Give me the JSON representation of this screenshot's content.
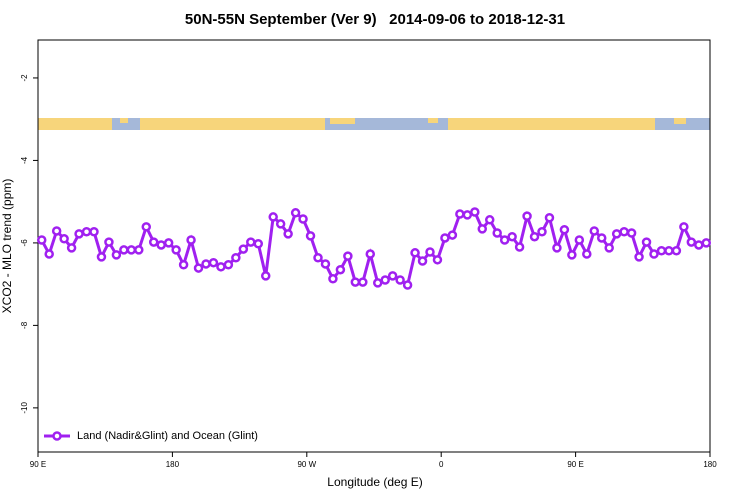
{
  "chart_data": {
    "type": "line",
    "title": "50N-55N September (Ver 9)   2014-09-06 to 2018-12-31",
    "x_label": "Longitude (deg E)",
    "y_label": "XCO2 - MLO trend (ppm)",
    "xlim": [
      90,
      540
    ],
    "xticks": [
      {
        "value": 90,
        "label": "90 E"
      },
      {
        "value": 180,
        "label": "180"
      },
      {
        "value": 270,
        "label": "90 W"
      },
      {
        "value": 360,
        "label": "0"
      },
      {
        "value": 450,
        "label": "90 E"
      },
      {
        "value": 540,
        "label": "180"
      }
    ],
    "ylim": [
      -11.07,
      -1.08
    ],
    "yticks": [
      -2,
      -4,
      -6,
      -8,
      -10
    ],
    "legend": "bottom-left",
    "series": [
      {
        "name": "Land (Nadir&Glint) and Ocean (Glint)",
        "color": "#a020f0",
        "x": [
          92.5,
          97.5,
          102.5,
          107.5,
          112.5,
          117.5,
          122.5,
          127.5,
          132.5,
          137.5,
          142.5,
          147.5,
          152.5,
          157.5,
          162.5,
          167.5,
          172.5,
          177.5,
          182.5,
          187.5,
          192.5,
          197.5,
          202.5,
          207.5,
          212.5,
          217.5,
          222.5,
          227.5,
          232.5,
          237.5,
          242.5,
          247.5,
          252.5,
          257.5,
          262.5,
          267.5,
          272.5,
          277.5,
          282.5,
          287.5,
          292.5,
          297.5,
          302.5,
          307.5,
          312.5,
          317.5,
          322.5,
          327.5,
          332.5,
          337.5,
          342.5,
          347.5,
          352.5,
          357.5,
          362.5,
          367.5,
          372.5,
          377.5,
          382.5,
          387.5,
          392.5,
          397.5,
          402.5,
          407.5,
          412.5,
          417.5,
          422.5,
          427.5,
          432.5,
          437.5,
          442.5,
          447.5,
          452.5,
          457.5,
          462.5,
          467.5,
          472.5,
          477.5,
          482.5,
          487.5,
          492.5,
          497.5,
          502.5,
          507.5,
          512.5,
          517.5,
          522.5,
          527.5,
          532.5,
          537.5
        ],
        "values": [
          -5.93,
          -6.27,
          -5.71,
          -5.9,
          -6.12,
          -5.78,
          -5.73,
          -5.73,
          -6.34,
          -5.98,
          -6.29,
          -6.17,
          -6.17,
          -6.17,
          -5.61,
          -5.98,
          -6.05,
          -6.0,
          -6.17,
          -6.53,
          -5.93,
          -6.61,
          -6.51,
          -6.48,
          -6.58,
          -6.53,
          -6.36,
          -6.15,
          -5.98,
          -6.02,
          -6.8,
          -5.37,
          -5.54,
          -5.78,
          -5.27,
          -5.42,
          -5.83,
          -6.36,
          -6.51,
          -6.87,
          -6.65,
          -6.32,
          -6.95,
          -6.95,
          -6.27,
          -6.97,
          -6.9,
          -6.8,
          -6.9,
          -7.02,
          -6.24,
          -6.44,
          -6.22,
          -6.41,
          -5.88,
          -5.81,
          -5.3,
          -5.32,
          -5.25,
          -5.66,
          -5.44,
          -5.76,
          -5.93,
          -5.85,
          -6.1,
          -5.35,
          -5.85,
          -5.73,
          -5.39,
          -6.12,
          -5.68,
          -6.29,
          -5.93,
          -6.27,
          -5.71,
          -5.88,
          -6.12,
          -5.78,
          -5.73,
          -5.76,
          -6.34,
          -5.98,
          -6.27,
          -6.19,
          -6.19,
          -6.19,
          -5.61,
          -5.98,
          -6.05,
          -6.0
        ]
      }
    ]
  }
}
